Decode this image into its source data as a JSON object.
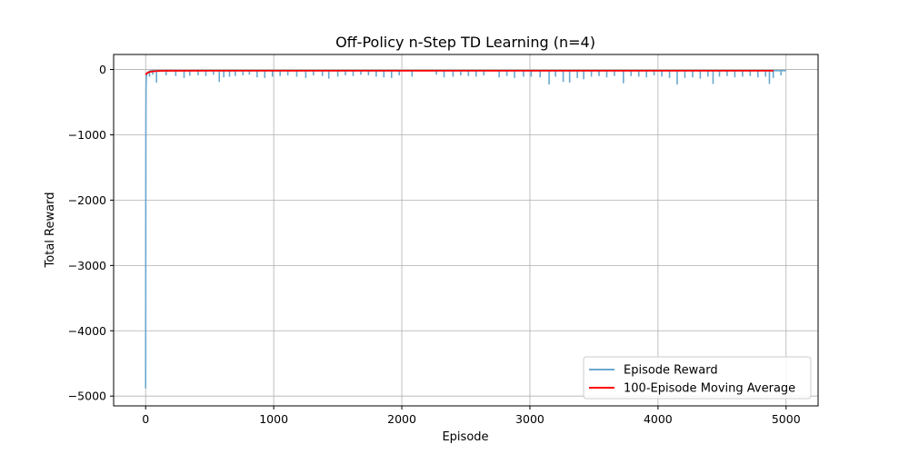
{
  "chart_data": {
    "type": "line",
    "title": "Off-Policy n-Step TD Learning (n=4)",
    "xlabel": "Episode",
    "ylabel": "Total Reward",
    "xlim": [
      -250,
      5250
    ],
    "ylim": [
      -5150,
      230
    ],
    "xticks": [
      0,
      1000,
      2000,
      3000,
      4000,
      5000
    ],
    "xtick_labels": [
      "0",
      "1000",
      "2000",
      "3000",
      "4000",
      "5000"
    ],
    "yticks": [
      0,
      -1000,
      -2000,
      -3000,
      -4000,
      -5000
    ],
    "ytick_labels": [
      "0",
      "−1000",
      "−2000",
      "−3000",
      "−4000",
      "−5000"
    ],
    "grid": true,
    "legend_position": "lower-right",
    "series": [
      {
        "name": "Episode Reward",
        "color": "#6aa8cf",
        "kind": "spiky",
        "x": [
          0,
          1,
          2,
          3,
          5,
          8,
          12,
          20,
          30,
          50,
          5000
        ],
        "y": [
          -4880,
          -2400,
          -900,
          -300,
          -120,
          -80,
          -60,
          -40,
          -25,
          -18,
          -18
        ],
        "spikes": [
          [
            30,
            -110
          ],
          [
            55,
            -80
          ],
          [
            85,
            -200
          ],
          [
            160,
            -90
          ],
          [
            235,
            -100
          ],
          [
            300,
            -130
          ],
          [
            345,
            -95
          ],
          [
            410,
            -90
          ],
          [
            470,
            -100
          ],
          [
            530,
            -80
          ],
          [
            575,
            -190
          ],
          [
            610,
            -120
          ],
          [
            655,
            -110
          ],
          [
            700,
            -100
          ],
          [
            760,
            -90
          ],
          [
            810,
            -80
          ],
          [
            870,
            -120
          ],
          [
            930,
            -130
          ],
          [
            990,
            -110
          ],
          [
            1050,
            -100
          ],
          [
            1110,
            -90
          ],
          [
            1180,
            -110
          ],
          [
            1250,
            -130
          ],
          [
            1310,
            -90
          ],
          [
            1380,
            -100
          ],
          [
            1430,
            -140
          ],
          [
            1500,
            -110
          ],
          [
            1560,
            -90
          ],
          [
            1620,
            -100
          ],
          [
            1680,
            -80
          ],
          [
            1740,
            -90
          ],
          [
            1800,
            -110
          ],
          [
            1860,
            -120
          ],
          [
            1920,
            -130
          ],
          [
            1980,
            -90
          ],
          [
            2080,
            -110
          ],
          [
            2270,
            -80
          ],
          [
            2330,
            -120
          ],
          [
            2400,
            -110
          ],
          [
            2460,
            -90
          ],
          [
            2520,
            -100
          ],
          [
            2580,
            -110
          ],
          [
            2640,
            -90
          ],
          [
            2760,
            -120
          ],
          [
            2820,
            -100
          ],
          [
            2880,
            -130
          ],
          [
            2950,
            -110
          ],
          [
            3010,
            -110
          ],
          [
            3080,
            -120
          ],
          [
            3150,
            -230
          ],
          [
            3200,
            -110
          ],
          [
            3260,
            -190
          ],
          [
            3310,
            -200
          ],
          [
            3370,
            -130
          ],
          [
            3420,
            -150
          ],
          [
            3480,
            -110
          ],
          [
            3540,
            -100
          ],
          [
            3600,
            -120
          ],
          [
            3660,
            -100
          ],
          [
            3730,
            -210
          ],
          [
            3790,
            -100
          ],
          [
            3850,
            -110
          ],
          [
            3910,
            -120
          ],
          [
            3970,
            -90
          ],
          [
            4030,
            -110
          ],
          [
            4090,
            -130
          ],
          [
            4150,
            -230
          ],
          [
            4210,
            -130
          ],
          [
            4270,
            -120
          ],
          [
            4330,
            -140
          ],
          [
            4390,
            -110
          ],
          [
            4430,
            -220
          ],
          [
            4480,
            -110
          ],
          [
            4540,
            -100
          ],
          [
            4600,
            -120
          ],
          [
            4660,
            -110
          ],
          [
            4720,
            -100
          ],
          [
            4780,
            -120
          ],
          [
            4840,
            -110
          ],
          [
            4870,
            -220
          ],
          [
            4900,
            -130
          ],
          [
            4960,
            -90
          ]
        ]
      },
      {
        "name": "100-Episode Moving Average",
        "color": "#ff0000",
        "kind": "line",
        "x": [
          0,
          10,
          30,
          50,
          80,
          99,
          150,
          500,
          1000,
          2000,
          3000,
          4000,
          4901
        ],
        "y": [
          -80,
          -55,
          -38,
          -30,
          -25,
          -22,
          -20,
          -18,
          -18,
          -18,
          -18,
          -18,
          -18
        ]
      }
    ]
  }
}
